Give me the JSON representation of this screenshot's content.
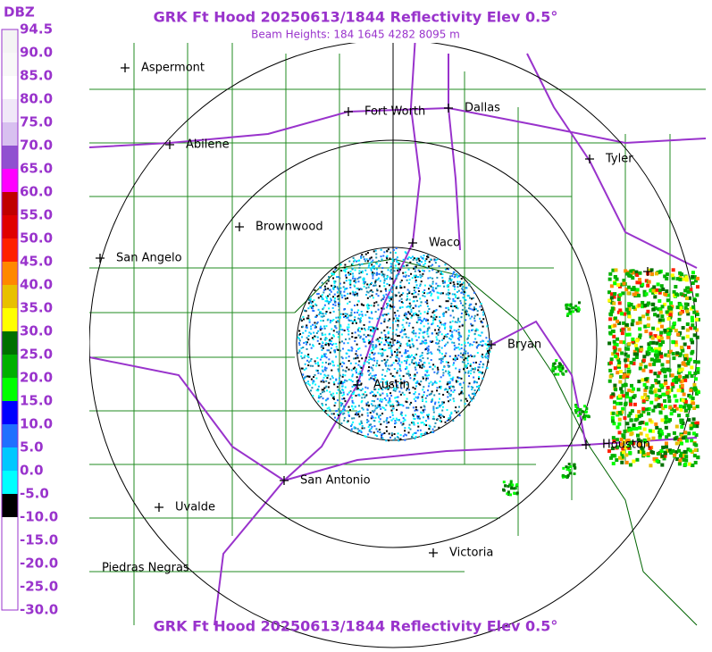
{
  "header": {
    "title": "GRK Ft Hood 20250613/1844 Reflectivity Elev 0.5°",
    "subtitle": "Beam Heights: 184 1645 4282 8095 m"
  },
  "footer": {
    "title": "GRK Ft Hood 20250613/1844 Reflectivity Elev 0.5°"
  },
  "colorbar": {
    "unit": "DBZ",
    "stops": [
      {
        "label": "94.5",
        "color": "#f4f4f4"
      },
      {
        "label": "90.0",
        "color": "#f8f8f8"
      },
      {
        "label": "85.0",
        "color": "#ffffff"
      },
      {
        "label": "80.0",
        "color": "#f0e8f8"
      },
      {
        "label": "75.0",
        "color": "#d8c0f0"
      },
      {
        "label": "70.0",
        "color": "#9050d0"
      },
      {
        "label": "65.0",
        "color": "#ff00ff"
      },
      {
        "label": "60.0",
        "color": "#c00000"
      },
      {
        "label": "55.0",
        "color": "#e00000"
      },
      {
        "label": "50.0",
        "color": "#ff2000"
      },
      {
        "label": "45.0",
        "color": "#ff8800"
      },
      {
        "label": "40.0",
        "color": "#e8c000"
      },
      {
        "label": "35.0",
        "color": "#ffff00"
      },
      {
        "label": "30.0",
        "color": "#007000"
      },
      {
        "label": "25.0",
        "color": "#00b000"
      },
      {
        "label": "20.0",
        "color": "#00ff00"
      },
      {
        "label": "15.0",
        "color": "#0000ff"
      },
      {
        "label": "10.0",
        "color": "#2070ff"
      },
      {
        "label": "5.0",
        "color": "#00c8ff"
      },
      {
        "label": "0.0",
        "color": "#00ffff"
      },
      {
        "label": "-5.0",
        "color": "#000000"
      },
      {
        "label": "-10.0",
        "color": "#ffffff"
      },
      {
        "label": "-15.0",
        "color": "#ffffff"
      },
      {
        "label": "-20.0",
        "color": "#ffffff"
      },
      {
        "label": "-25.0",
        "color": "#ffffff"
      },
      {
        "label": "-30.0",
        "color": "#ffffff"
      }
    ]
  },
  "cities": [
    "Aspermont",
    "Fort Worth",
    "Dallas",
    "Abilene",
    "Tyler",
    "Brownwood",
    "Waco",
    "San Angelo",
    "Bryan",
    "Austin",
    "Houston",
    "San Antonio",
    "Uvalde",
    "Victoria",
    "Piedras Negras"
  ]
}
